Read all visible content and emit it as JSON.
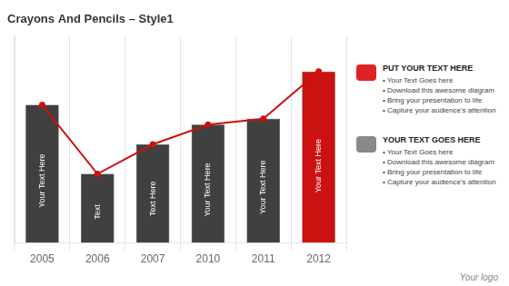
{
  "chart_data": {
    "type": "bar",
    "title": "Crayons And Pencils – Style1",
    "categories": [
      "2005",
      "2006",
      "2007",
      "2010",
      "2011",
      "2012"
    ],
    "series": [
      {
        "type": "bar",
        "values": [
          0.7,
          0.35,
          0.5,
          0.6,
          0.63,
          0.87
        ],
        "colors": [
          "#404040",
          "#404040",
          "#404040",
          "#404040",
          "#404040",
          "#cc1111"
        ]
      },
      {
        "type": "line",
        "values": [
          0.7,
          0.35,
          0.5,
          0.6,
          0.63,
          0.87
        ],
        "color": "#cc1111",
        "marker": "circle",
        "line_style": "solid"
      }
    ],
    "bar_texts": [
      "Your Text Here",
      "Text",
      "Text Here",
      "Your Text Here",
      "Your Text Here",
      "Your Text Here"
    ],
    "ylim": [
      0,
      1.05
    ],
    "yticks": [],
    "grid": true,
    "tick_labels": "x",
    "side_notes": [
      {
        "title": "PUT YOUR TEXT HERE",
        "color": "#dd2222",
        "items": [
          "•  Your Text Goes here",
          "•  Download this awesome diagram",
          "•  Bring your presentation to life",
          "•  Capture your audience's attention"
        ]
      },
      {
        "title": "YOUR TEXT GOES HERE",
        "color": "#888888",
        "items": [
          "•  Your Text Goes here",
          "•  Download this awesome diagram",
          "•  Bring your presentation to life",
          "•  Capture your audience's attention"
        ]
      }
    ],
    "footer": "Your logo"
  }
}
